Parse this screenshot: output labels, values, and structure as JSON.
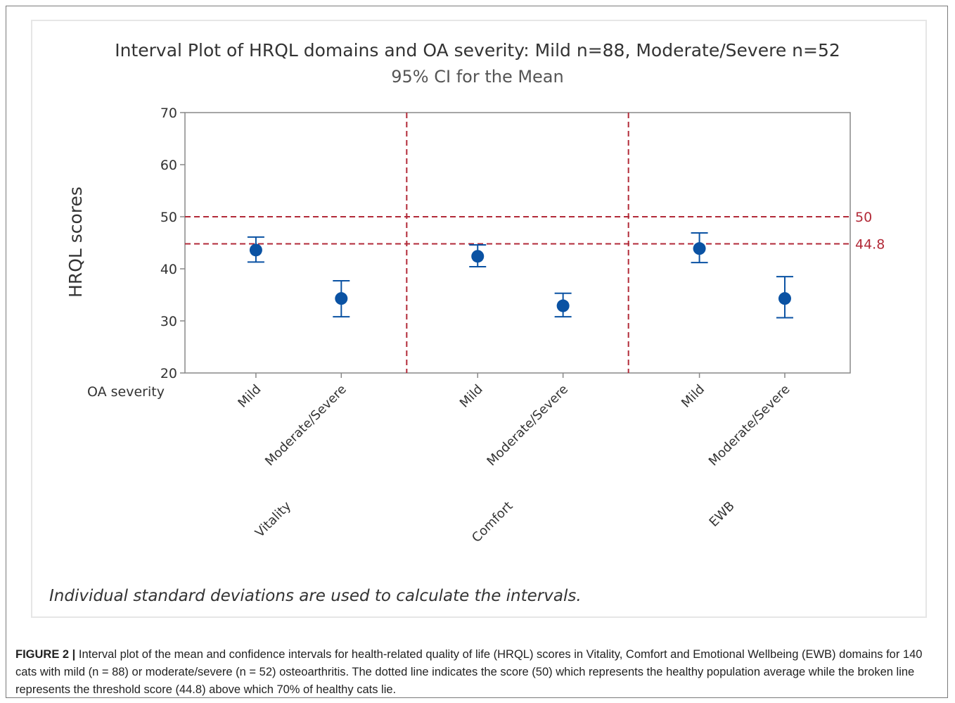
{
  "chart_data": {
    "type": "scatter",
    "title": "Interval Plot of HRQL domains and OA severity: Mild n=88, Moderate/Severe n=52",
    "subtitle": "95% CI for the Mean",
    "ylabel": "HRQL scores",
    "xlabel": "OA severity",
    "ylim": [
      20,
      70
    ],
    "yticks": [
      20,
      30,
      40,
      50,
      60,
      70
    ],
    "domains": [
      "Vitality",
      "Comfort",
      "EWB"
    ],
    "categories": [
      "Mild",
      "Moderate/Severe"
    ],
    "points": [
      {
        "domain": "Vitality",
        "category": "Mild",
        "mean": 43.6,
        "lower": 41.3,
        "upper": 46.1
      },
      {
        "domain": "Vitality",
        "category": "Moderate/Severe",
        "mean": 34.3,
        "lower": 30.8,
        "upper": 37.7
      },
      {
        "domain": "Comfort",
        "category": "Mild",
        "mean": 42.4,
        "lower": 40.4,
        "upper": 44.6
      },
      {
        "domain": "Comfort",
        "category": "Moderate/Severe",
        "mean": 32.9,
        "lower": 30.8,
        "upper": 35.3
      },
      {
        "domain": "EWB",
        "category": "Mild",
        "mean": 43.9,
        "lower": 41.2,
        "upper": 46.9
      },
      {
        "domain": "EWB",
        "category": "Moderate/Severe",
        "mean": 34.3,
        "lower": 30.6,
        "upper": 38.5
      }
    ],
    "reference_lines": [
      {
        "value": 50,
        "label": "50"
      },
      {
        "value": 44.8,
        "label": "44.8"
      }
    ],
    "grid": false,
    "colors": {
      "points": "#0a52a3",
      "reference": "#b22a38",
      "axis": "#888888"
    }
  },
  "footnote": "Individual standard deviations are used to calculate the intervals.",
  "caption": {
    "lead": "FIGURE 2 |",
    "text": " Interval plot of the mean and confidence intervals for health-related quality of life (HRQL) scores in Vitality, Comfort and Emotional Wellbeing (EWB) domains for 140 cats with mild (n = 88) or moderate/severe (n = 52) osteoarthritis. The dotted line indicates the score (50) which represents the healthy population average while the broken line represents the threshold score (44.8) above which 70% of healthy cats lie."
  }
}
